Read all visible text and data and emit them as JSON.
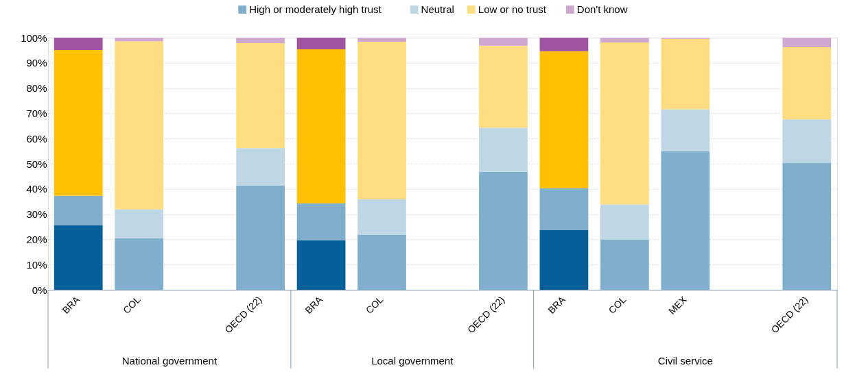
{
  "chart_data": {
    "type": "bar",
    "stacked": true,
    "legend": "top",
    "grid": "y",
    "ylim": [
      0,
      100
    ],
    "yticks": [
      {
        "value": 0,
        "label": "0%"
      },
      {
        "value": 10,
        "label": "10%"
      },
      {
        "value": 20,
        "label": "20%"
      },
      {
        "value": 30,
        "label": "30%"
      },
      {
        "value": 40,
        "label": "40%"
      },
      {
        "value": 50,
        "label": "50%"
      },
      {
        "value": 60,
        "label": "60%"
      },
      {
        "value": 70,
        "label": "70%"
      },
      {
        "value": 80,
        "label": "80%"
      },
      {
        "value": 90,
        "label": "90%"
      },
      {
        "value": 100,
        "label": "100%"
      }
    ],
    "categories": [
      "BRA",
      "COL",
      null,
      "OECD (22)",
      "BRA",
      "COL",
      null,
      "OECD (22)",
      "BRA",
      "COL",
      "MEX",
      null,
      "OECD (22)"
    ],
    "annotations": [
      "National government",
      "Local government",
      "Civil service"
    ],
    "series": [
      {
        "name": "High or moderately high trust",
        "color": "#7fafcd",
        "colors": [
          "#055f99",
          "#7fafcd",
          null,
          "#7fafcd",
          "#055f99",
          "#7fafcd",
          null,
          "#7fafcd",
          "#055f99",
          "#7fafcd",
          "#7fafcd",
          null,
          "#7fafcd"
        ],
        "values": [
          25.7,
          20.5,
          null,
          41.4,
          19.7,
          21.9,
          null,
          46.8,
          23.8,
          20.0,
          54.9,
          null,
          50.3
        ]
      },
      {
        "name": "Neutral",
        "color": "#bfd7e5",
        "colors": [
          "#7fafcd",
          "#bfd7e5",
          null,
          "#bfd7e5",
          "#7fafcd",
          "#bfd7e5",
          null,
          "#bfd7e5",
          "#7fafcd",
          "#bfd7e5",
          "#bfd7e5",
          null,
          "#bfd7e5"
        ],
        "values": [
          11.6,
          11.4,
          null,
          14.8,
          14.6,
          14.0,
          null,
          17.5,
          16.5,
          13.8,
          16.7,
          null,
          17.3
        ]
      },
      {
        "name": "Low or no trust",
        "color": "#ffdd80",
        "colors": [
          "#ffc000",
          "#ffdd80",
          null,
          "#ffdd80",
          "#ffc000",
          "#ffdd80",
          null,
          "#ffdd80",
          "#ffc000",
          "#ffdd80",
          "#ffdd80",
          null,
          "#ffdd80"
        ],
        "values": [
          57.8,
          66.7,
          null,
          41.6,
          61.1,
          62.5,
          null,
          32.5,
          54.3,
          64.3,
          27.9,
          null,
          28.6
        ]
      },
      {
        "name": "Don't know",
        "color": "#cfa8d0",
        "colors": [
          "#9f54a0",
          "#cfa8d0",
          null,
          "#cfa8d0",
          "#9f54a0",
          "#cfa8d0",
          null,
          "#cfa8d0",
          "#9f54a0",
          "#cfa8d0",
          "#cfa8d0",
          null,
          "#cfa8d0"
        ],
        "values": [
          4.9,
          1.4,
          null,
          2.2,
          4.6,
          1.6,
          null,
          3.2,
          5.4,
          1.9,
          0.5,
          null,
          3.8
        ]
      }
    ]
  }
}
